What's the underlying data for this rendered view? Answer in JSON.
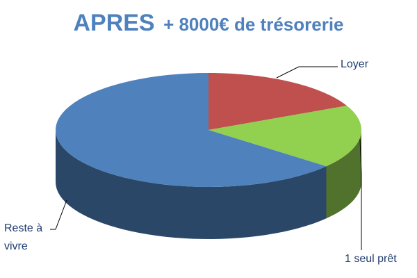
{
  "chart_data": {
    "type": "pie",
    "title": "APRES",
    "subtitle": "+ 8000€ de trésorerie",
    "categories": [
      "Loyer",
      "1 seul prêt",
      "Reste à vivre"
    ],
    "values": [
      18,
      18,
      64
    ],
    "colors": [
      "#c0504d",
      "#92d050",
      "#4f81bd"
    ]
  }
}
